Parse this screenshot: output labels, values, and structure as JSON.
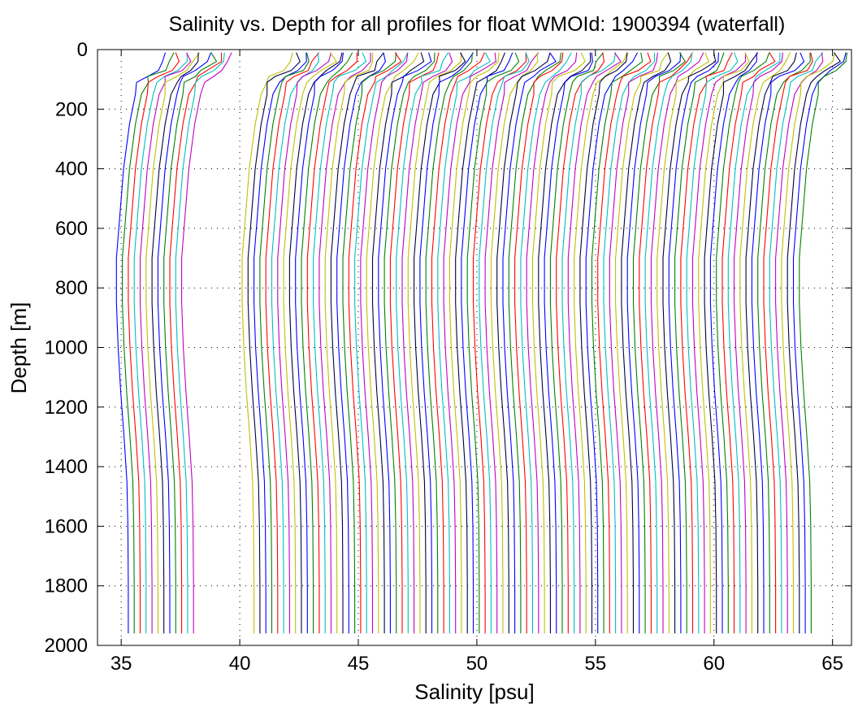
{
  "chart_data": {
    "type": "line",
    "title": "Salinity vs. Depth for all profiles for float WMOId: 1900394 (waterfall)",
    "xlabel": "Salinity [psu]",
    "ylabel": "Depth [m]",
    "xlim": [
      34,
      65.8
    ],
    "ylim": [
      0,
      2000
    ],
    "y_reversed": true,
    "grid": true,
    "x_ticks": [
      35,
      40,
      45,
      50,
      55,
      60,
      65
    ],
    "y_ticks": [
      0,
      200,
      400,
      600,
      800,
      1000,
      1200,
      1400,
      1600,
      1800,
      2000
    ],
    "x_tick_labels": [
      "35",
      "40",
      "45",
      "50",
      "55",
      "60",
      "65"
    ],
    "y_tick_labels": [
      "0",
      "200",
      "400",
      "600",
      "800",
      "1000",
      "1200",
      "1400",
      "1600",
      "1800",
      "2000"
    ],
    "series_colors": [
      "#0000ff",
      "#008000",
      "#ff0000",
      "#00bfbf",
      "#bf00bf",
      "#bfbf00",
      "#000040"
    ],
    "waterfall": {
      "offset_step": 0.25,
      "deep_value": 35.3,
      "intermediate_min": 34.8,
      "surface_value": 36.9,
      "groups": [
        {
          "first_offset": 0.0,
          "count": 12,
          "max_depth": 1960
        },
        {
          "first_offset": 5.3,
          "count": 95,
          "max_depth": 1960
        }
      ]
    }
  }
}
